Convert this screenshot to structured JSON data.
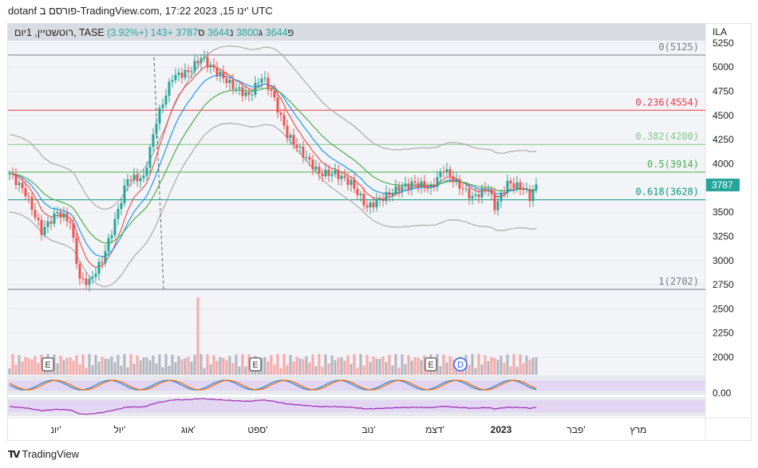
{
  "header": {
    "text": "dotanf פורסם ב-TradingView.com, 17:22 2023 ,15 ינו' UTC"
  },
  "legend": {
    "symbol": "רוטשטיין, 1יום, TASE",
    "open_label": "פ",
    "open": "3644",
    "high_label": "ג",
    "high": "3800",
    "low_label": "נ",
    "low": "3644",
    "close_label": "ס",
    "close": "3787",
    "change": "+143 (+3.92%)"
  },
  "currency": "ILA",
  "last_price": "3787",
  "price_axis": [
    "5250",
    "5000",
    "4750",
    "4500",
    "4250",
    "4000",
    "3500",
    "3250",
    "3000",
    "2750",
    "2500",
    "2250",
    "2000"
  ],
  "fib_levels": [
    {
      "label": "0(5125)",
      "price": 5125,
      "color": "#787b86"
    },
    {
      "label": "0.236(4554)",
      "price": 4554,
      "color": "#f23645"
    },
    {
      "label": "0.382(4200)",
      "price": 4200,
      "color": "#81c784"
    },
    {
      "label": "0.5(3914)",
      "price": 3914,
      "color": "#4caf50"
    },
    {
      "label": "0.618(3628)",
      "price": 3628,
      "color": "#089981"
    },
    {
      "label": "1(2702)",
      "price": 2702,
      "color": "#787b86"
    }
  ],
  "oscillator_axis": "0.00",
  "time_axis": [
    "יונ'",
    "יול'",
    "אוג'",
    "ספט'",
    "נוב'",
    "דצמ'",
    "2023",
    "פבר'",
    "מרץ"
  ],
  "events": [
    "E",
    "E",
    "E",
    "D"
  ],
  "price_keypoints": [
    [
      0,
      3900
    ],
    [
      5,
      3700
    ],
    [
      10,
      3300
    ],
    [
      15,
      3500
    ],
    [
      19,
      3400
    ],
    [
      22,
      2800
    ],
    [
      25,
      2780
    ],
    [
      29,
      3000
    ],
    [
      32,
      3300
    ],
    [
      37,
      3850
    ],
    [
      42,
      3850
    ],
    [
      46,
      4450
    ],
    [
      51,
      4900
    ],
    [
      56,
      4950
    ],
    [
      60,
      5100
    ],
    [
      65,
      4950
    ],
    [
      70,
      4800
    ],
    [
      75,
      4700
    ],
    [
      79,
      4900
    ],
    [
      82,
      4750
    ],
    [
      87,
      4300
    ],
    [
      92,
      4100
    ],
    [
      97,
      3900
    ],
    [
      102,
      3900
    ],
    [
      107,
      3800
    ],
    [
      112,
      3550
    ],
    [
      117,
      3650
    ],
    [
      122,
      3750
    ],
    [
      127,
      3800
    ],
    [
      132,
      3750
    ],
    [
      136,
      3950
    ],
    [
      140,
      3800
    ],
    [
      145,
      3650
    ],
    [
      150,
      3750
    ],
    [
      152,
      3550
    ],
    [
      156,
      3800
    ],
    [
      161,
      3750
    ],
    [
      163,
      3650
    ],
    [
      165,
      3787
    ]
  ],
  "colors": {
    "up": "#26a69a",
    "down": "#ef5350",
    "accent": "#26a69a"
  },
  "brand": "TradingView"
}
